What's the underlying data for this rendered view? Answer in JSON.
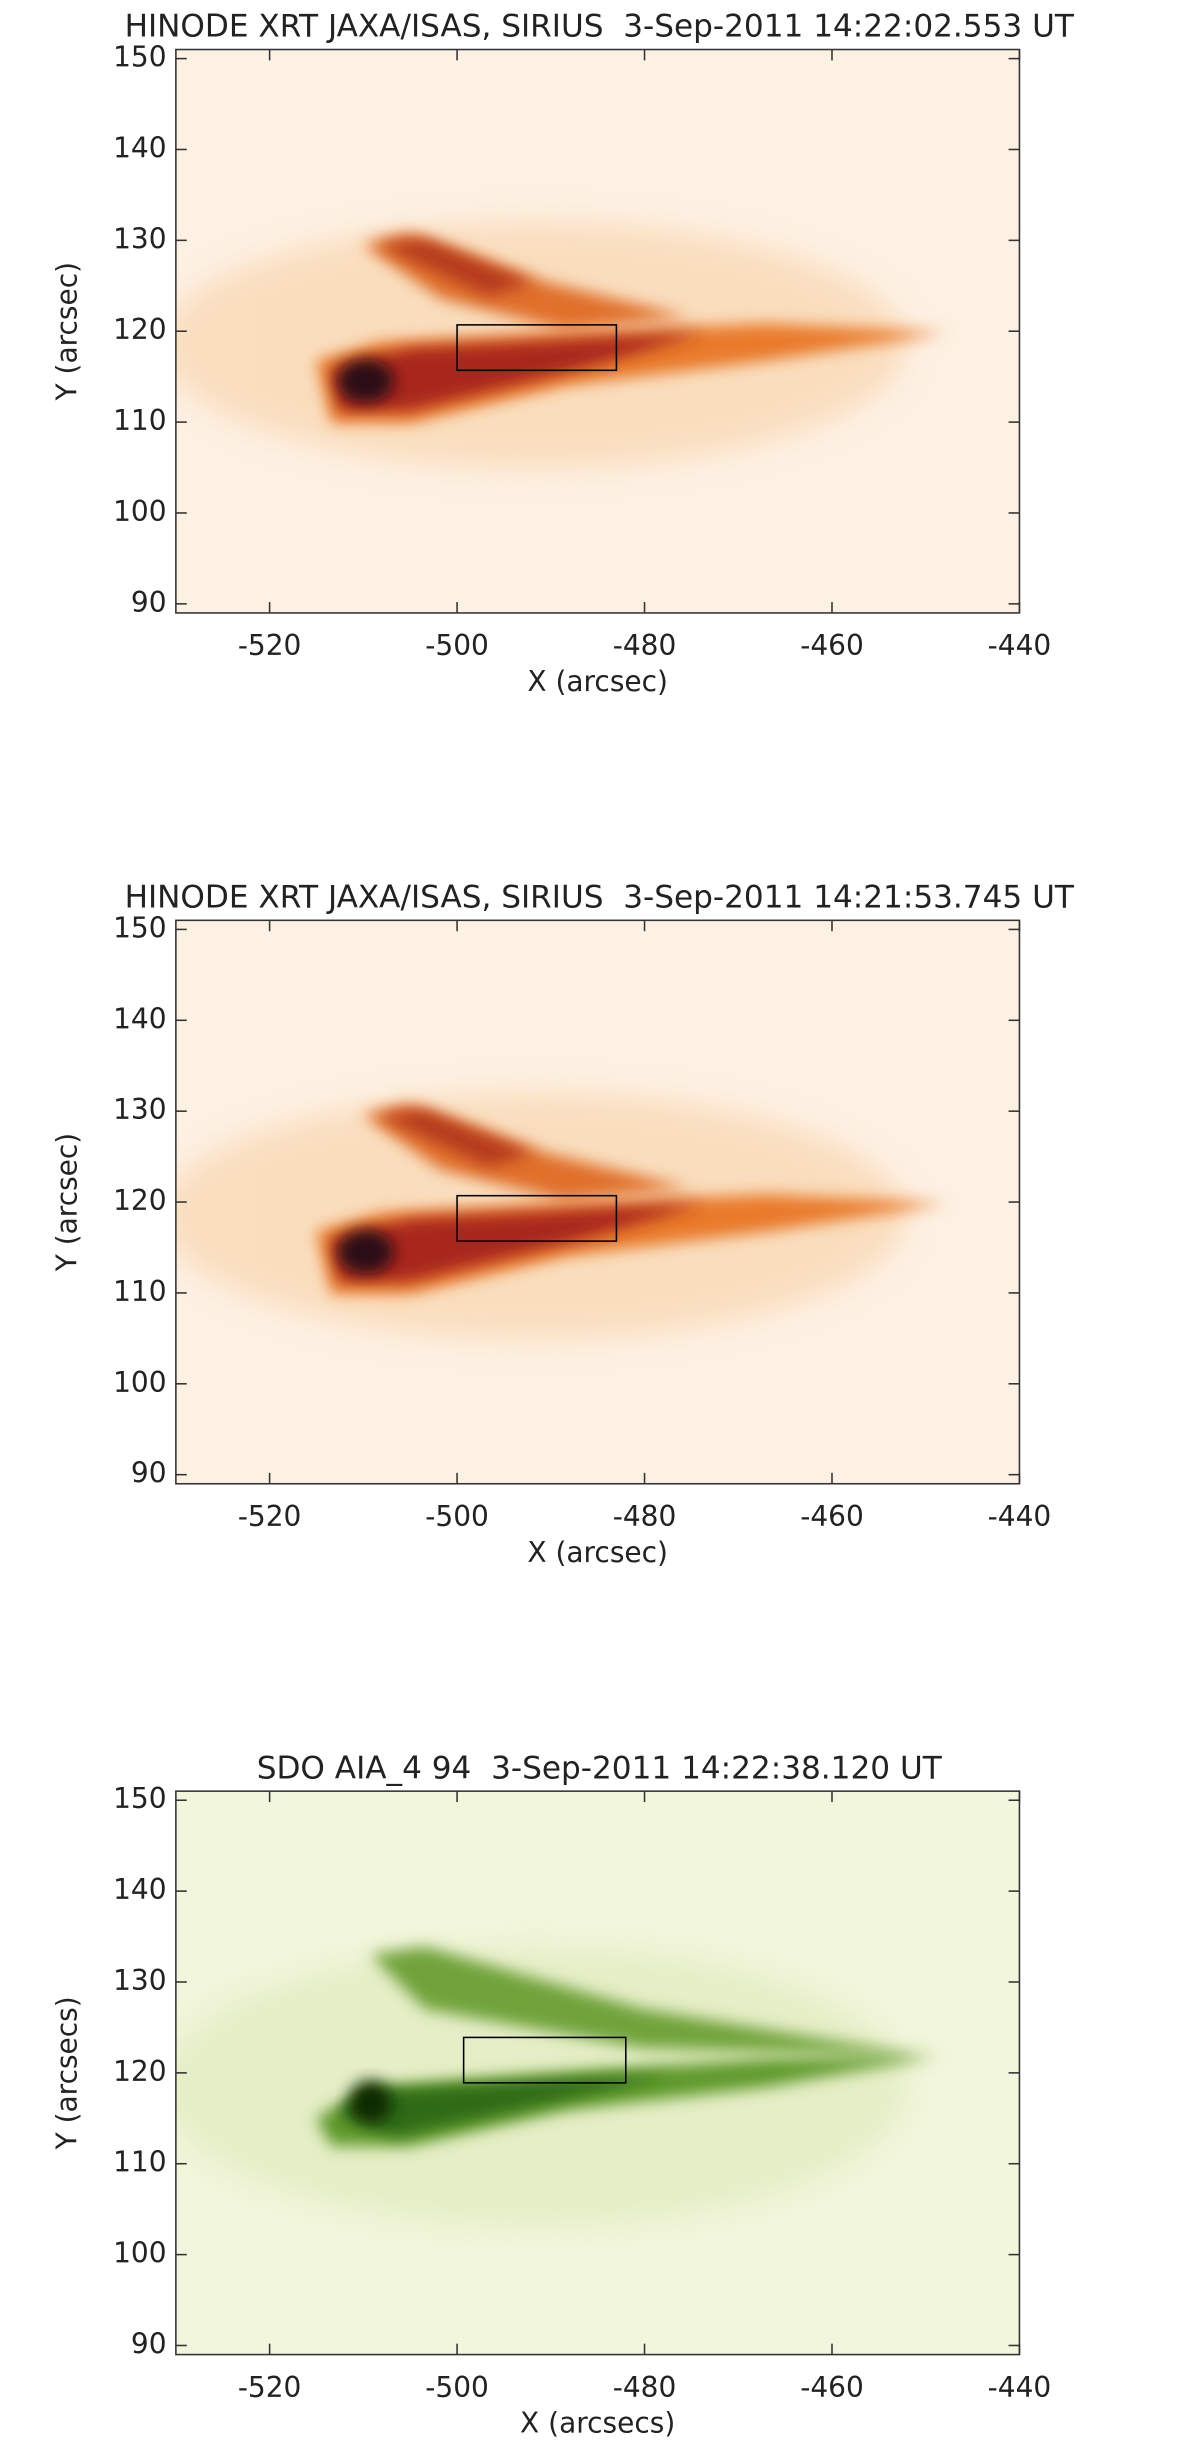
{
  "chart_data": [
    {
      "type": "image",
      "title": "HINODE XRT JAXA/ISAS, SIRIUS  3-Sep-2011 14:22:02.553 UT",
      "xlabel": "X (arcsec)",
      "ylabel": "Y (arcsec)",
      "xlim": [
        -530,
        -440
      ],
      "ylim": [
        89,
        151
      ],
      "xticks": [
        -520,
        -500,
        -480,
        -460,
        -440
      ],
      "yticks": [
        90,
        100,
        110,
        120,
        130,
        140,
        150
      ],
      "colormap": "orange",
      "box": {
        "x": [
          -500,
          -483
        ],
        "y": [
          115.7,
          120.7
        ]
      }
    },
    {
      "type": "image",
      "title": "HINODE XRT JAXA/ISAS, SIRIUS  3-Sep-2011 14:21:53.745 UT",
      "xlabel": "X (arcsec)",
      "ylabel": "Y (arcsec)",
      "xlim": [
        -530,
        -440
      ],
      "ylim": [
        89,
        151
      ],
      "xticks": [
        -520,
        -500,
        -480,
        -460,
        -440
      ],
      "yticks": [
        90,
        100,
        110,
        120,
        130,
        140,
        150
      ],
      "colormap": "orange",
      "box": {
        "x": [
          -500,
          -483
        ],
        "y": [
          115.7,
          120.7
        ]
      }
    },
    {
      "type": "image",
      "title": "SDO AIA_4 94  3-Sep-2011 14:22:38.120 UT",
      "xlabel": "X (arcsecs)",
      "ylabel": "Y (arcsecs)",
      "xlim": [
        -530,
        -440
      ],
      "ylim": [
        89,
        151
      ],
      "xticks": [
        -520,
        -500,
        -480,
        -460,
        -440
      ],
      "yticks": [
        90,
        100,
        110,
        120,
        130,
        140,
        150
      ],
      "colormap": "green",
      "box": {
        "x": [
          -499.3,
          -482
        ],
        "y": [
          118.9,
          123.9
        ]
      }
    }
  ]
}
